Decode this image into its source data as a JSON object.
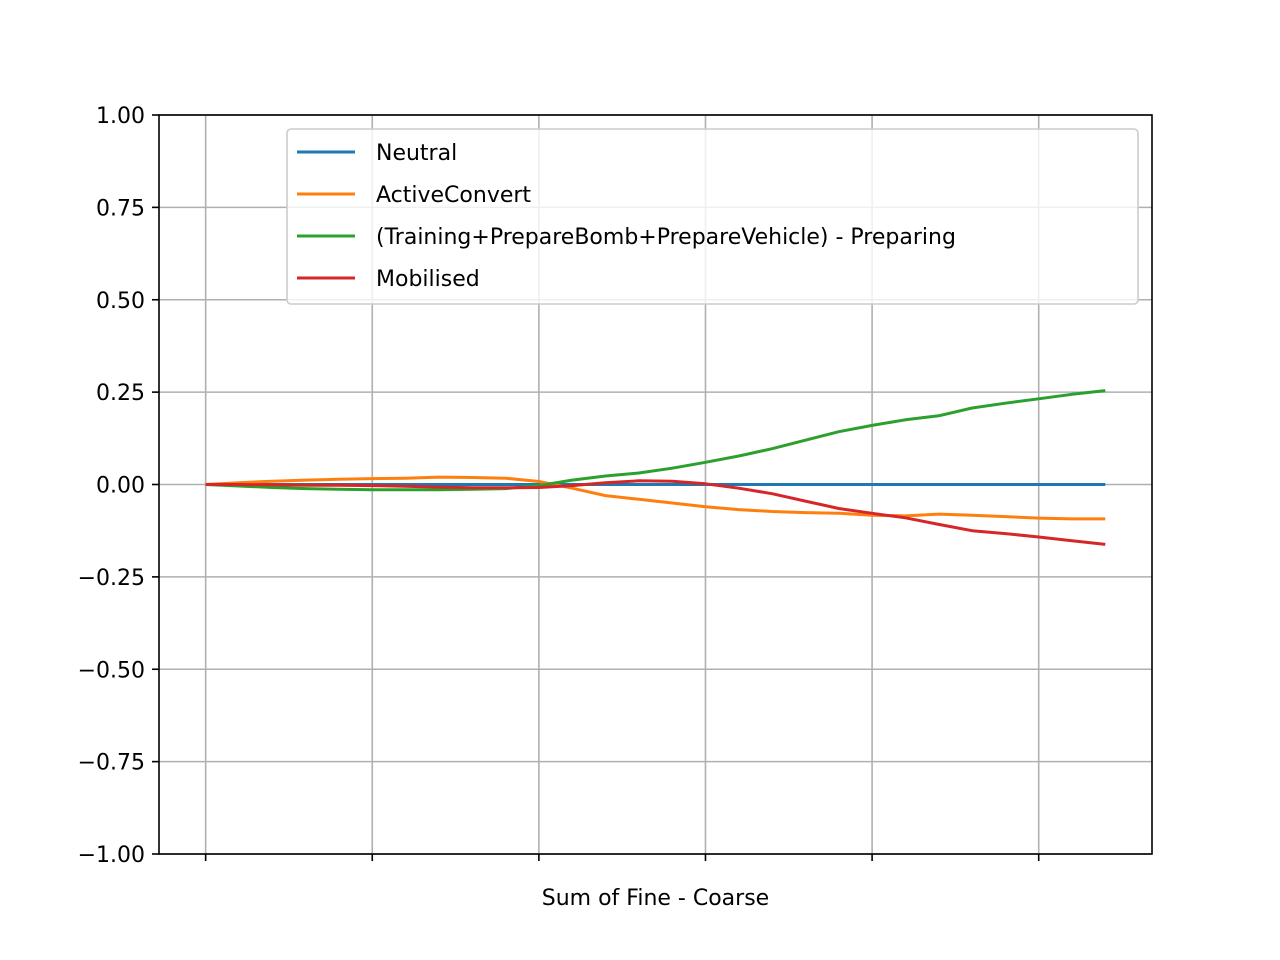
{
  "chart_data": {
    "type": "line",
    "title": "",
    "xlabel": "Sum of Fine - Coarse",
    "ylabel": "",
    "xlim": [
      -1.4,
      28.4
    ],
    "ylim": [
      -1.0,
      1.0
    ],
    "yticks": [
      -1.0,
      -0.75,
      -0.5,
      -0.25,
      0.0,
      0.25,
      0.5,
      0.75,
      1.0
    ],
    "ytick_labels": [
      "−1.00",
      "−0.75",
      "−0.50",
      "−0.25",
      "0.00",
      "0.25",
      "0.50",
      "0.75",
      "1.00"
    ],
    "xticks": [
      0,
      5,
      10,
      15,
      20,
      25
    ],
    "grid": true,
    "legend_position": "top-right",
    "x": [
      0,
      1,
      2,
      3,
      4,
      5,
      6,
      7,
      8,
      9,
      10,
      11,
      12,
      13,
      14,
      15,
      16,
      17,
      18,
      19,
      20,
      21,
      22,
      23,
      24,
      25,
      26,
      27
    ],
    "series": [
      {
        "name": "Neutral",
        "color": "#1f77b4",
        "values": [
          0,
          0,
          0,
          0,
          0,
          0,
          0,
          0,
          0,
          0,
          0,
          0,
          0,
          0,
          0,
          0,
          0,
          0,
          0,
          0,
          0,
          0,
          0,
          0,
          0,
          0,
          0,
          0
        ]
      },
      {
        "name": "ActiveConvert",
        "color": "#ff7f0e",
        "values": [
          0,
          0.005,
          0.009,
          0.012,
          0.014,
          0.016,
          0.017,
          0.02,
          0.019,
          0.017,
          0.008,
          -0.01,
          -0.03,
          -0.04,
          -0.05,
          -0.06,
          -0.068,
          -0.073,
          -0.076,
          -0.078,
          -0.083,
          -0.085,
          -0.08,
          -0.083,
          -0.087,
          -0.091,
          -0.093,
          -0.093
        ]
      },
      {
        "name": "(Training+PrepareBomb+PrepareVehicle) - Preparing",
        "color": "#2ca02c",
        "values": [
          0,
          -0.004,
          -0.008,
          -0.011,
          -0.013,
          -0.014,
          -0.014,
          -0.014,
          -0.013,
          -0.011,
          -0.003,
          0.012,
          0.023,
          0.031,
          0.044,
          0.06,
          0.077,
          0.097,
          0.12,
          0.143,
          0.16,
          0.175,
          0.186,
          0.207,
          0.22,
          0.232,
          0.244,
          0.254
        ]
      },
      {
        "name": "Mobilised",
        "color": "#d62728",
        "values": [
          0,
          0,
          -0.001,
          -0.002,
          -0.002,
          -0.003,
          -0.005,
          -0.007,
          -0.009,
          -0.009,
          -0.008,
          -0.003,
          0.005,
          0.01,
          0.009,
          0.002,
          -0.01,
          -0.025,
          -0.045,
          -0.065,
          -0.078,
          -0.09,
          -0.108,
          -0.125,
          -0.133,
          -0.142,
          -0.152,
          -0.162
        ]
      }
    ]
  }
}
